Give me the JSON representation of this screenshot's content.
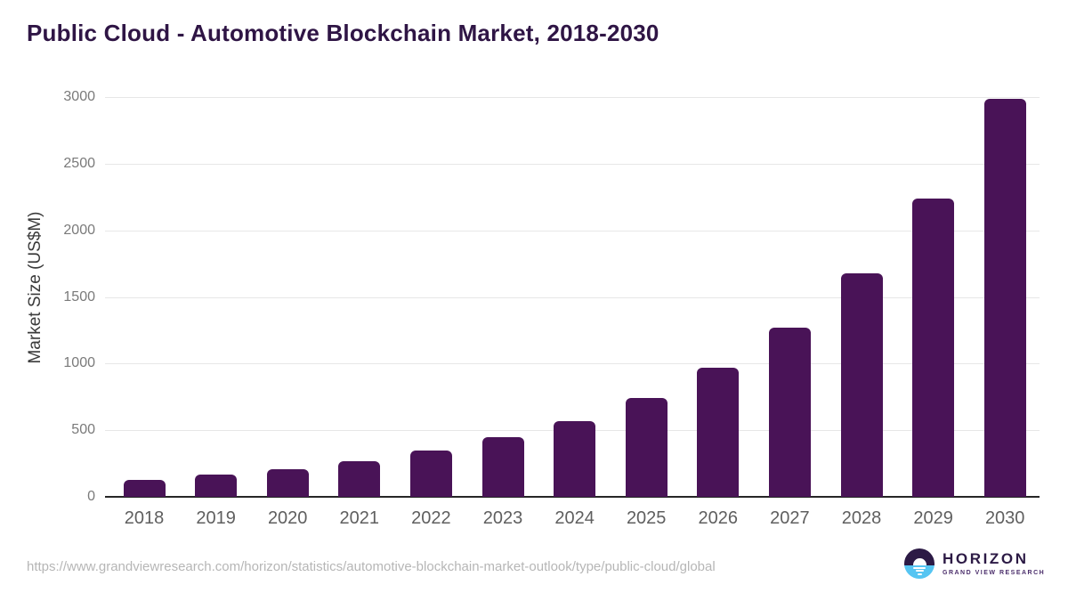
{
  "title": "Public Cloud - Automotive Blockchain Market, 2018-2030",
  "source_url": "https://www.grandviewresearch.com/horizon/statistics/automotive-blockchain-market-outlook/type/public-cloud/global",
  "branding": {
    "name": "HORIZON",
    "subtitle": "GRAND VIEW RESEARCH"
  },
  "colors": {
    "title": "#2f1545",
    "bar": "#491357",
    "grid": "#e7e7e7",
    "axis": "#262626",
    "y_tick": "#7a7a7a",
    "x_tick": "#5f5f5f",
    "url_text": "#b6b6b6",
    "logo_purple": "#2c1a45",
    "logo_blue": "#56c5f2",
    "logo_subtitle": "#4b2e6b"
  },
  "chart_data": {
    "type": "bar",
    "title": "Public Cloud - Automotive Blockchain Market, 2018-2030",
    "categories": [
      "2018",
      "2019",
      "2020",
      "2021",
      "2022",
      "2023",
      "2024",
      "2025",
      "2026",
      "2027",
      "2028",
      "2029",
      "2030"
    ],
    "values": [
      130,
      165,
      210,
      265,
      345,
      445,
      570,
      740,
      970,
      1270,
      1675,
      2240,
      2985
    ],
    "xlabel": "",
    "ylabel": "Market Size (US$M)",
    "ylim": [
      0,
      3000
    ],
    "yticks": [
      0,
      500,
      1000,
      1500,
      2000,
      2500,
      3000
    ],
    "grid": true,
    "legend": "none",
    "bar_color": "#491357"
  }
}
